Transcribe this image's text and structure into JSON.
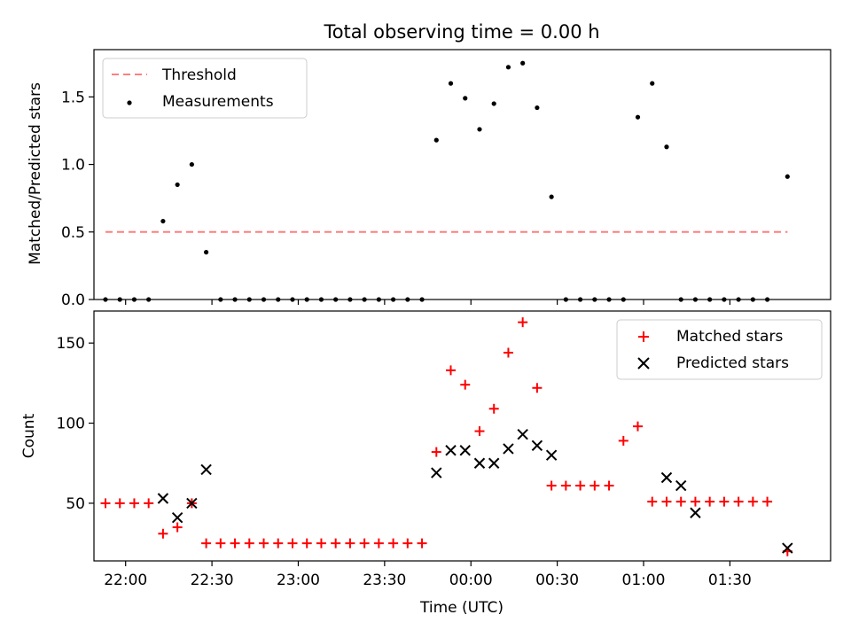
{
  "chart_data": [
    {
      "type": "scatter",
      "title": "Total observing time = 0.00 h",
      "ylabel": "Matched/Predicted stars",
      "xlabel": "",
      "xlim": [
        "21:49",
        "02:05"
      ],
      "ylim": [
        0,
        1.85
      ],
      "x_ticks": [
        "22:00",
        "22:30",
        "23:00",
        "23:30",
        "00:00",
        "00:30",
        "01:00",
        "01:30"
      ],
      "y_ticks": [
        "0.0",
        "0.5",
        "1.0",
        "1.5"
      ],
      "legend_position": "top-left",
      "series": [
        {
          "name": "Threshold",
          "style": "dashed-line",
          "color": "#ff7f7f",
          "x": [
            "21:53",
            "23:45",
            "01:50"
          ],
          "y": [
            0.5,
            0.5,
            0.5
          ]
        },
        {
          "name": "Measurements",
          "style": "dot",
          "color": "#000000",
          "x": [
            "21:53",
            "21:58",
            "22:03",
            "22:08",
            "22:13",
            "22:18",
            "22:23",
            "22:28",
            "22:33",
            "22:38",
            "22:43",
            "22:48",
            "22:53",
            "22:58",
            "23:03",
            "23:08",
            "23:13",
            "23:18",
            "23:23",
            "23:28",
            "23:33",
            "23:38",
            "23:43",
            "23:48",
            "23:53",
            "23:58",
            "00:03",
            "00:08",
            "00:13",
            "00:18",
            "00:23",
            "00:28",
            "00:33",
            "00:38",
            "00:43",
            "00:48",
            "00:53",
            "00:58",
            "01:03",
            "01:08",
            "01:13",
            "01:18",
            "01:23",
            "01:28",
            "01:33",
            "01:38",
            "01:43",
            "01:50"
          ],
          "y": [
            0,
            0,
            0,
            0,
            0.58,
            0.85,
            1.0,
            0.35,
            0,
            0,
            0,
            0,
            0,
            0,
            0,
            0,
            0,
            0,
            0,
            0,
            0,
            0,
            0,
            1.18,
            1.6,
            1.49,
            1.26,
            1.45,
            1.72,
            1.75,
            1.42,
            0.76,
            0,
            0,
            0,
            0,
            0,
            1.35,
            1.6,
            1.13,
            0,
            0,
            0,
            0,
            0,
            0,
            0,
            0.91
          ]
        }
      ]
    },
    {
      "type": "scatter",
      "title": "",
      "ylabel": "Count",
      "xlabel": "Time (UTC)",
      "xlim": [
        "21:49",
        "02:05"
      ],
      "ylim": [
        14,
        170
      ],
      "x_ticks": [
        "22:00",
        "22:30",
        "23:00",
        "23:30",
        "00:00",
        "00:30",
        "01:00",
        "01:30"
      ],
      "y_ticks": [
        "50",
        "100",
        "150"
      ],
      "legend_position": "top-right",
      "series": [
        {
          "name": "Matched stars",
          "marker": "plus",
          "color": "#ff0000",
          "x": [
            "21:53",
            "21:58",
            "22:03",
            "22:08",
            "22:13",
            "22:18",
            "22:23",
            "22:28",
            "22:33",
            "22:38",
            "22:43",
            "22:48",
            "22:53",
            "22:58",
            "23:03",
            "23:08",
            "23:13",
            "23:18",
            "23:23",
            "23:28",
            "23:33",
            "23:38",
            "23:43",
            "23:48",
            "23:53",
            "23:58",
            "00:03",
            "00:08",
            "00:13",
            "00:18",
            "00:23",
            "00:28",
            "00:33",
            "00:38",
            "00:43",
            "00:48",
            "00:53",
            "00:58",
            "01:03",
            "01:08",
            "01:13",
            "01:18",
            "01:23",
            "01:28",
            "01:33",
            "01:38",
            "01:43",
            "01:50"
          ],
          "y": [
            50,
            50,
            50,
            50,
            31,
            35,
            50,
            25,
            25,
            25,
            25,
            25,
            25,
            25,
            25,
            25,
            25,
            25,
            25,
            25,
            25,
            25,
            25,
            82,
            133,
            124,
            95,
            109,
            144,
            163,
            122,
            61,
            61,
            61,
            61,
            61,
            89,
            98,
            51,
            51,
            51,
            51,
            51,
            51,
            51,
            51,
            51,
            20
          ]
        },
        {
          "name": "Predicted stars",
          "marker": "x",
          "color": "#000000",
          "x": [
            "22:13",
            "22:18",
            "22:23",
            "22:28",
            "23:48",
            "23:53",
            "23:58",
            "00:03",
            "00:08",
            "00:13",
            "00:18",
            "00:23",
            "00:28",
            "01:08",
            "01:13",
            "01:18",
            "01:50"
          ],
          "y": [
            53,
            41,
            50,
            71,
            69,
            83,
            83,
            75,
            75,
            84,
            93,
            86,
            80,
            66,
            61,
            44,
            22
          ]
        }
      ]
    }
  ]
}
